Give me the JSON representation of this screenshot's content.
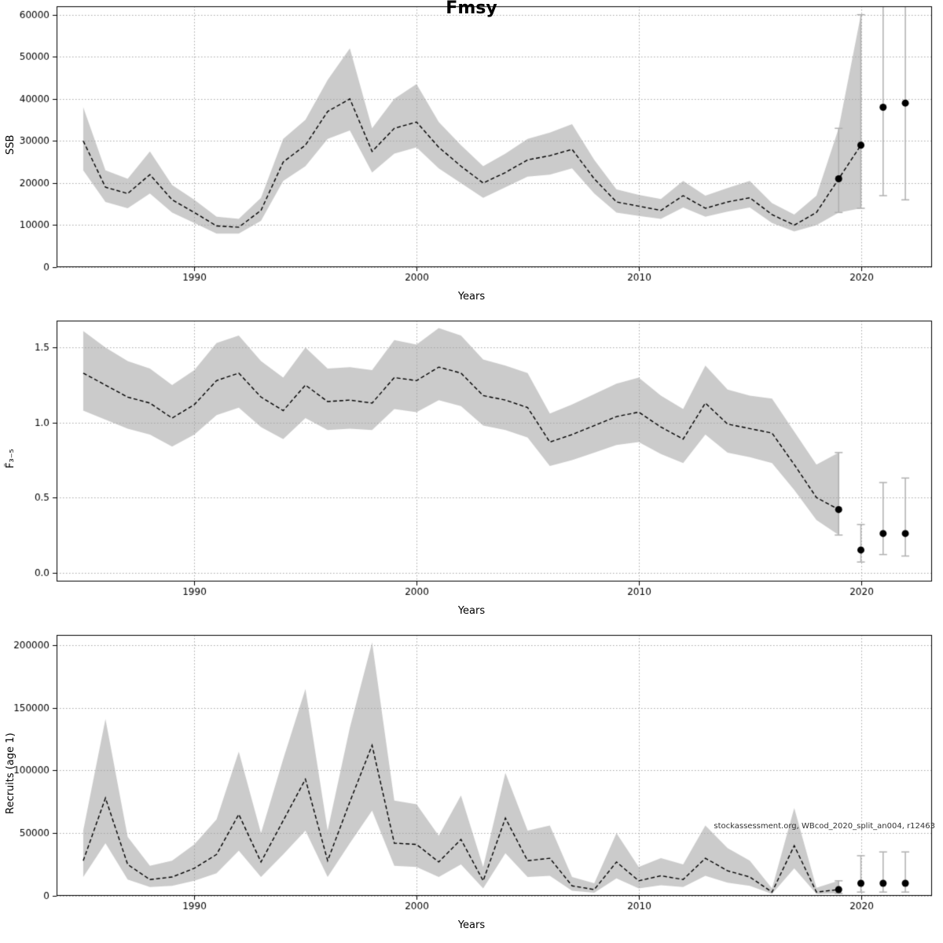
{
  "title": "Fmsy",
  "watermark": "stockassessment.org, WBcod_2020_split_an004, r12463",
  "colors": {
    "band": "rgba(160,160,160,0.55)",
    "line": "#000000",
    "errorbar": "#b0b0b0",
    "grid": "#a8a8a8",
    "point": "#000000"
  },
  "chart_data": [
    {
      "type": "line",
      "name": "ssb",
      "ylabel": "SSB",
      "xlabel": "Years",
      "xlim": [
        1983.8,
        2023.2
      ],
      "ylim": [
        0,
        62000
      ],
      "xticks": [
        1990,
        2000,
        2010,
        2020
      ],
      "xticklabels": [
        "1990",
        "2000",
        "2010",
        "2020"
      ],
      "yticks": [
        0,
        10000,
        20000,
        30000,
        40000,
        50000,
        60000
      ],
      "yticklabels": [
        "0",
        "10000",
        "20000",
        "30000",
        "40000",
        "50000",
        "60000"
      ],
      "x": [
        1985,
        1986,
        1987,
        1988,
        1989,
        1990,
        1991,
        1992,
        1993,
        1994,
        1995,
        1996,
        1997,
        1998,
        1999,
        2000,
        2001,
        2002,
        2003,
        2004,
        2005,
        2006,
        2007,
        2008,
        2009,
        2010,
        2011,
        2012,
        2013,
        2014,
        2015,
        2016,
        2017,
        2018,
        2019,
        2020
      ],
      "mean": [
        30000,
        19000,
        17500,
        22000,
        16000,
        13000,
        9800,
        9500,
        13500,
        25000,
        29000,
        37000,
        40000,
        27500,
        33000,
        34500,
        28500,
        24000,
        20000,
        22500,
        25500,
        26500,
        28000,
        21000,
        15500,
        14500,
        13500,
        17000,
        14000,
        15500,
        16500,
        12500,
        10000,
        13000,
        21000,
        29000
      ],
      "lower": [
        23000,
        15500,
        14000,
        17500,
        13000,
        10500,
        8000,
        8000,
        11000,
        20500,
        24000,
        30500,
        32500,
        22500,
        27000,
        28500,
        23500,
        20000,
        16500,
        19000,
        21500,
        22000,
        23500,
        17500,
        13000,
        12200,
        11500,
        14200,
        12000,
        13200,
        14200,
        10500,
        8500,
        10000,
        13000,
        14000
      ],
      "upper": [
        38000,
        23000,
        21000,
        27500,
        19500,
        16000,
        12000,
        11500,
        16500,
        30500,
        35000,
        44500,
        52000,
        33000,
        40000,
        43500,
        34500,
        29000,
        24000,
        27000,
        30500,
        32000,
        34000,
        25500,
        18500,
        17200,
        16200,
        20500,
        17000,
        18800,
        20500,
        15200,
        12500,
        17000,
        33000,
        60000
      ],
      "points": [
        {
          "x": 2019,
          "y": 21000,
          "lo": 13000,
          "hi": 33000
        },
        {
          "x": 2020,
          "y": 29000,
          "lo": 14000,
          "hi": 60000
        },
        {
          "x": 2021,
          "y": 38000,
          "lo": 17000,
          "hi": 70000
        },
        {
          "x": 2022,
          "y": 39000,
          "lo": 16000,
          "hi": 70000
        }
      ]
    },
    {
      "type": "line",
      "name": "fbar",
      "ylabel": "F̄₃₋₅",
      "xlabel": "Years",
      "xlim": [
        1983.8,
        2023.2
      ],
      "ylim": [
        -0.06,
        1.68
      ],
      "xticks": [
        1990,
        2000,
        2010,
        2020
      ],
      "xticklabels": [
        "1990",
        "2000",
        "2010",
        "2020"
      ],
      "yticks": [
        0.0,
        0.5,
        1.0,
        1.5
      ],
      "yticklabels": [
        "0.0",
        "0.5",
        "1.0",
        "1.5"
      ],
      "x": [
        1985,
        1986,
        1987,
        1988,
        1989,
        1990,
        1991,
        1992,
        1993,
        1994,
        1995,
        1996,
        1997,
        1998,
        1999,
        2000,
        2001,
        2002,
        2003,
        2004,
        2005,
        2006,
        2007,
        2008,
        2009,
        2010,
        2011,
        2012,
        2013,
        2014,
        2015,
        2016,
        2017,
        2018,
        2019
      ],
      "mean": [
        1.33,
        1.25,
        1.17,
        1.13,
        1.03,
        1.12,
        1.28,
        1.33,
        1.17,
        1.08,
        1.25,
        1.14,
        1.15,
        1.13,
        1.3,
        1.28,
        1.37,
        1.33,
        1.18,
        1.15,
        1.1,
        0.87,
        0.92,
        0.98,
        1.04,
        1.07,
        0.97,
        0.89,
        1.13,
        0.99,
        0.96,
        0.93,
        0.72,
        0.5,
        0.42
      ],
      "lower": [
        1.08,
        1.02,
        0.96,
        0.92,
        0.84,
        0.92,
        1.05,
        1.1,
        0.97,
        0.89,
        1.03,
        0.95,
        0.96,
        0.95,
        1.09,
        1.07,
        1.15,
        1.11,
        0.98,
        0.95,
        0.9,
        0.71,
        0.75,
        0.8,
        0.85,
        0.87,
        0.79,
        0.73,
        0.92,
        0.8,
        0.77,
        0.73,
        0.55,
        0.35,
        0.25
      ],
      "upper": [
        1.61,
        1.5,
        1.41,
        1.36,
        1.25,
        1.35,
        1.53,
        1.58,
        1.41,
        1.3,
        1.5,
        1.36,
        1.37,
        1.35,
        1.55,
        1.52,
        1.63,
        1.58,
        1.42,
        1.38,
        1.33,
        1.06,
        1.12,
        1.19,
        1.26,
        1.3,
        1.18,
        1.09,
        1.38,
        1.22,
        1.18,
        1.16,
        0.94,
        0.72,
        0.8
      ],
      "points": [
        {
          "x": 2019,
          "y": 0.42,
          "lo": 0.25,
          "hi": 0.8
        },
        {
          "x": 2020,
          "y": 0.15,
          "lo": 0.07,
          "hi": 0.32
        },
        {
          "x": 2021,
          "y": 0.26,
          "lo": 0.12,
          "hi": 0.6
        },
        {
          "x": 2022,
          "y": 0.26,
          "lo": 0.11,
          "hi": 0.63
        }
      ]
    },
    {
      "type": "line",
      "name": "recruits",
      "ylabel": "Recruits (age 1)",
      "xlabel": "Years",
      "xlim": [
        1983.8,
        2023.2
      ],
      "ylim": [
        0,
        208000
      ],
      "xticks": [
        1990,
        2000,
        2010,
        2020
      ],
      "xticklabels": [
        "1990",
        "2000",
        "2010",
        "2020"
      ],
      "yticks": [
        0,
        50000,
        100000,
        150000,
        200000
      ],
      "yticklabels": [
        "0",
        "50000",
        "100000",
        "150000",
        "200000"
      ],
      "x": [
        1985,
        1986,
        1987,
        1988,
        1989,
        1990,
        1991,
        1992,
        1993,
        1994,
        1995,
        1996,
        1997,
        1998,
        1999,
        2000,
        2001,
        2002,
        2003,
        2004,
        2005,
        2006,
        2007,
        2008,
        2009,
        2010,
        2011,
        2012,
        2013,
        2014,
        2015,
        2016,
        2017,
        2018,
        2019
      ],
      "mean": [
        28000,
        78000,
        25000,
        13000,
        15000,
        22000,
        33000,
        65000,
        27000,
        60000,
        93000,
        28000,
        75000,
        120000,
        42000,
        41000,
        27000,
        45000,
        12000,
        62000,
        28000,
        30000,
        8000,
        5000,
        27000,
        12000,
        16000,
        13000,
        30000,
        20000,
        15000,
        3000,
        40000,
        3000,
        5000
      ],
      "lower": [
        15000,
        42000,
        13000,
        7000,
        8000,
        12000,
        18000,
        36000,
        15000,
        33000,
        52000,
        15000,
        42000,
        68000,
        24000,
        23000,
        15000,
        25000,
        6000,
        34000,
        15000,
        16000,
        4000,
        2500,
        14000,
        6000,
        8500,
        7000,
        16000,
        10500,
        8000,
        1500,
        22000,
        1500,
        2000
      ],
      "upper": [
        52000,
        141000,
        47000,
        24000,
        28000,
        41000,
        61000,
        115000,
        50000,
        109000,
        165000,
        52000,
        134000,
        202000,
        76000,
        73000,
        48000,
        80000,
        23000,
        98000,
        52000,
        56000,
        15000,
        10000,
        50000,
        23000,
        30000,
        25000,
        56000,
        38000,
        28000,
        6000,
        70000,
        6500,
        12000
      ],
      "points": [
        {
          "x": 2019,
          "y": 5000,
          "lo": 2000,
          "hi": 12000
        },
        {
          "x": 2020,
          "y": 10000,
          "lo": 3000,
          "hi": 32000
        },
        {
          "x": 2021,
          "y": 10000,
          "lo": 3000,
          "hi": 35000
        },
        {
          "x": 2022,
          "y": 10000,
          "lo": 3000,
          "hi": 35000
        }
      ]
    }
  ]
}
